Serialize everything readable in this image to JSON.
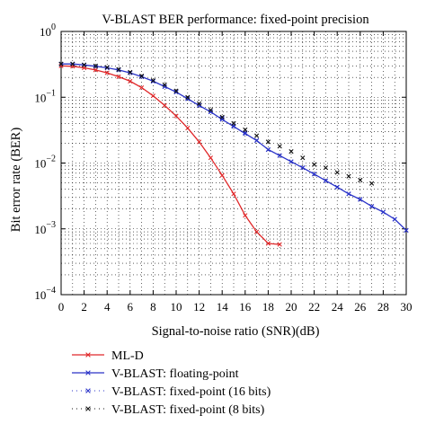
{
  "chart_data": {
    "type": "line",
    "title": "V-BLAST BER performance: fixed-point precision",
    "xlabel": "Signal-to-noise ratio (SNR)(dB)",
    "ylabel": "Bit error rate (BER)",
    "xlim": [
      0,
      30
    ],
    "ylim": [
      0.0001,
      1
    ],
    "yscale": "log",
    "grid": "dotted",
    "legend_position": "below",
    "x_ticks": [
      "0",
      "2",
      "4",
      "6",
      "8",
      "10",
      "12",
      "14",
      "16",
      "18",
      "20",
      "22",
      "24",
      "26",
      "28",
      "30"
    ],
    "y_ticks": [
      {
        "base": "10",
        "exp": "0",
        "value": 1
      },
      {
        "base": "10",
        "exp": "−1",
        "value": 0.1
      },
      {
        "base": "10",
        "exp": "−2",
        "value": 0.01
      },
      {
        "base": "10",
        "exp": "−3",
        "value": 0.001
      },
      {
        "base": "10",
        "exp": "−4",
        "value": 0.0001
      }
    ],
    "series": [
      {
        "name": "ML-D",
        "color": "#e0282a",
        "line": "solid",
        "marker": "x",
        "x": [
          0,
          1,
          2,
          3,
          4,
          5,
          6,
          7,
          8,
          9,
          10,
          11,
          12,
          13,
          14,
          15,
          16,
          17,
          18,
          19
        ],
        "y": [
          0.3,
          0.295,
          0.28,
          0.26,
          0.235,
          0.205,
          0.175,
          0.14,
          0.105,
          0.075,
          0.052,
          0.034,
          0.021,
          0.012,
          0.0065,
          0.0034,
          0.0016,
          0.0009,
          0.0006,
          0.00058
        ]
      },
      {
        "name": "V-BLAST: floating-point",
        "color": "#2a33c8",
        "line": "solid",
        "marker": "x",
        "x": [
          0,
          1,
          2,
          3,
          4,
          5,
          6,
          7,
          8,
          9,
          10,
          11,
          12,
          13,
          14,
          15,
          16,
          17,
          18,
          19,
          20,
          21,
          22,
          23,
          24,
          25,
          26,
          27,
          28,
          29,
          30
        ],
        "y": [
          0.32,
          0.32,
          0.31,
          0.295,
          0.28,
          0.26,
          0.235,
          0.205,
          0.175,
          0.145,
          0.12,
          0.095,
          0.075,
          0.06,
          0.046,
          0.036,
          0.028,
          0.022,
          0.016,
          0.013,
          0.0105,
          0.0085,
          0.0068,
          0.0054,
          0.0043,
          0.0034,
          0.0028,
          0.0022,
          0.0018,
          0.0014,
          0.00095
        ]
      },
      {
        "name": "V-BLAST: fixed-point (16 bits)",
        "color": "#2a33c8",
        "line": "none",
        "marker": "x",
        "x": [
          0,
          1,
          2,
          3,
          4,
          5,
          6,
          7,
          8,
          9,
          10,
          11,
          12,
          13,
          14,
          15,
          16,
          17,
          18,
          19,
          20,
          21,
          22,
          23,
          24,
          25,
          26,
          27,
          28,
          29,
          30
        ],
        "y": [
          0.32,
          0.32,
          0.31,
          0.295,
          0.28,
          0.26,
          0.235,
          0.205,
          0.175,
          0.145,
          0.12,
          0.095,
          0.075,
          0.06,
          0.048,
          0.037,
          0.029,
          0.022,
          0.016,
          0.013,
          0.0105,
          0.0085,
          0.0068,
          0.0054,
          0.0043,
          0.0034,
          0.0028,
          0.0022,
          0.0018,
          0.0014,
          0.00095
        ]
      },
      {
        "name": "V-BLAST: fixed-point (8 bits)",
        "color": "#111111",
        "line": "none",
        "marker": "x",
        "x": [
          0,
          1,
          2,
          3,
          4,
          5,
          6,
          7,
          8,
          9,
          10,
          11,
          12,
          13,
          14,
          15,
          16,
          17,
          18,
          19,
          20,
          21,
          22,
          23,
          24,
          25,
          26,
          27
        ],
        "y": [
          0.32,
          0.32,
          0.31,
          0.3,
          0.285,
          0.265,
          0.24,
          0.21,
          0.18,
          0.155,
          0.125,
          0.1,
          0.08,
          0.064,
          0.05,
          0.04,
          0.032,
          0.026,
          0.021,
          0.018,
          0.015,
          0.012,
          0.0095,
          0.0085,
          0.0072,
          0.0063,
          0.0055,
          0.0049
        ]
      }
    ]
  }
}
